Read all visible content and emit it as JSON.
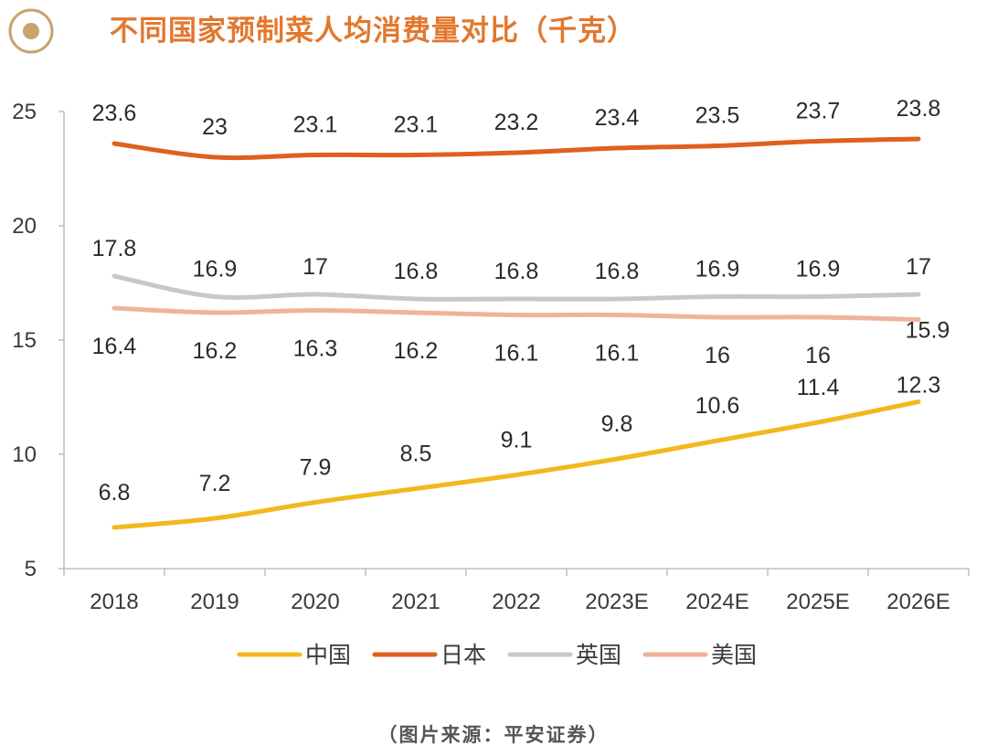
{
  "colors": {
    "title": "#E2782F",
    "icon": "#C9A46A",
    "axis": "#BFBFBF"
  },
  "header": {
    "icon": "target-circle-icon",
    "title": "不同国家预制菜人均消费量对比（千克）"
  },
  "source": "（图片来源：平安证券）",
  "chart_data": {
    "type": "line",
    "title": "不同国家预制菜人均消费量对比（千克）",
    "categories": [
      "2018",
      "2019",
      "2020",
      "2021",
      "2022",
      "2023E",
      "2024E",
      "2025E",
      "2026E"
    ],
    "ylim": [
      5,
      25
    ],
    "yticks": [
      5,
      10,
      15,
      20,
      25
    ],
    "xlabel": "",
    "ylabel": "",
    "grid": false,
    "legend_position": "bottom",
    "series": [
      {
        "name": "中国",
        "color": "#F2B91C",
        "values": [
          6.8,
          7.2,
          7.9,
          8.5,
          9.1,
          9.8,
          10.6,
          11.4,
          12.3
        ]
      },
      {
        "name": "日本",
        "color": "#E0601C",
        "values": [
          23.6,
          23,
          23.1,
          23.1,
          23.2,
          23.4,
          23.5,
          23.7,
          23.8
        ]
      },
      {
        "name": "英国",
        "color": "#C8C8C8",
        "values": [
          17.8,
          16.9,
          17,
          16.8,
          16.8,
          16.8,
          16.9,
          16.9,
          17
        ]
      },
      {
        "name": "美国",
        "color": "#EDB49B",
        "values": [
          16.4,
          16.2,
          16.3,
          16.2,
          16.1,
          16.1,
          16,
          16,
          15.9
        ]
      }
    ]
  }
}
